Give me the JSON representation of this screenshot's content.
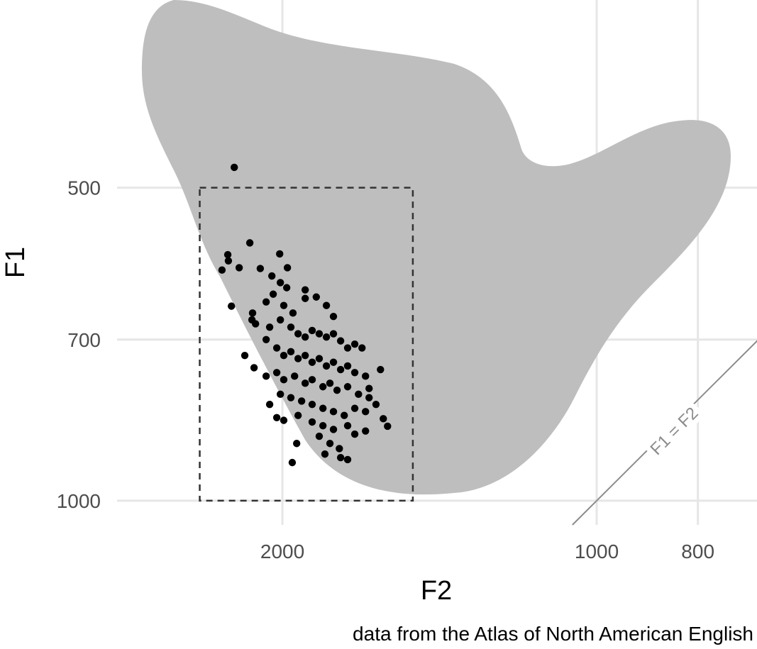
{
  "chart_data": {
    "type": "scatter",
    "x_label": "F2",
    "y_label": "F1",
    "caption": "data from the Atlas of North American English",
    "log_x": true,
    "log_y": true,
    "grid": true,
    "xlim": [
      2880,
      700
    ],
    "ylim": [
      1055,
      330
    ],
    "xticks": [
      2000,
      1000,
      800
    ],
    "yticks": [
      500,
      700,
      1000
    ],
    "color": "#000000",
    "reference_line": {
      "label": "F1 = F2",
      "color": "#8c8c8c"
    },
    "rect": {
      "x": [
        2400,
        1500
      ],
      "y": [
        500,
        1000
      ]
    },
    "x": [
      2224,
      2149,
      2256,
      2285,
      2200,
      2253,
      2238,
      2012,
      1978,
      2100,
      2047,
      2009,
      1981,
      1902,
      2136,
      2073,
      2041,
      1994,
      1954,
      1902,
      1856,
      1815,
      1787,
      2122,
      2057,
      2009,
      1963,
      1932,
      1902,
      1873,
      1844,
      1815,
      1787,
      1759,
      1732,
      1705,
      1678,
      2073,
      2025,
      1994,
      1963,
      1932,
      1902,
      1873,
      1844,
      1815,
      1787,
      1759,
      1732,
      1705,
      1665,
      1611,
      2129,
      2073,
      2025,
      1994,
      1947,
      1902,
      1873,
      1829,
      1801,
      1773,
      1732,
      1691,
      1652,
      2057,
      2009,
      1963,
      1917,
      1873,
      1829,
      1787,
      1745,
      1705,
      1665,
      1627,
      1601,
      1586,
      2025,
      1994,
      1932,
      1873,
      1829,
      1787,
      1732,
      1705,
      1665,
      1844,
      1801,
      1764,
      1732,
      1938,
      1957,
      1821,
      1759,
      2173,
      2139,
      1652
    ],
    "y": [
      478,
      565,
      580,
      600,
      597,
      588,
      650,
      579,
      597,
      598,
      608,
      617,
      624,
      627,
      660,
      644,
      633,
      649,
      660,
      639,
      637,
      649,
      665,
      676,
      681,
      670,
      681,
      691,
      696,
      686,
      691,
      696,
      691,
      702,
      713,
      707,
      713,
      700,
      713,
      725,
      719,
      730,
      725,
      736,
      730,
      742,
      736,
      748,
      742,
      753,
      759,
      748,
      745,
      759,
      753,
      765,
      759,
      771,
      765,
      777,
      771,
      783,
      777,
      790,
      796,
      808,
      790,
      796,
      802,
      808,
      815,
      821,
      828,
      815,
      821,
      808,
      834,
      848,
      832,
      837,
      828,
      840,
      847,
      854,
      847,
      863,
      857,
      867,
      881,
      891,
      913,
      881,
      919,
      902,
      909,
      725,
      670,
      780
    ]
  }
}
